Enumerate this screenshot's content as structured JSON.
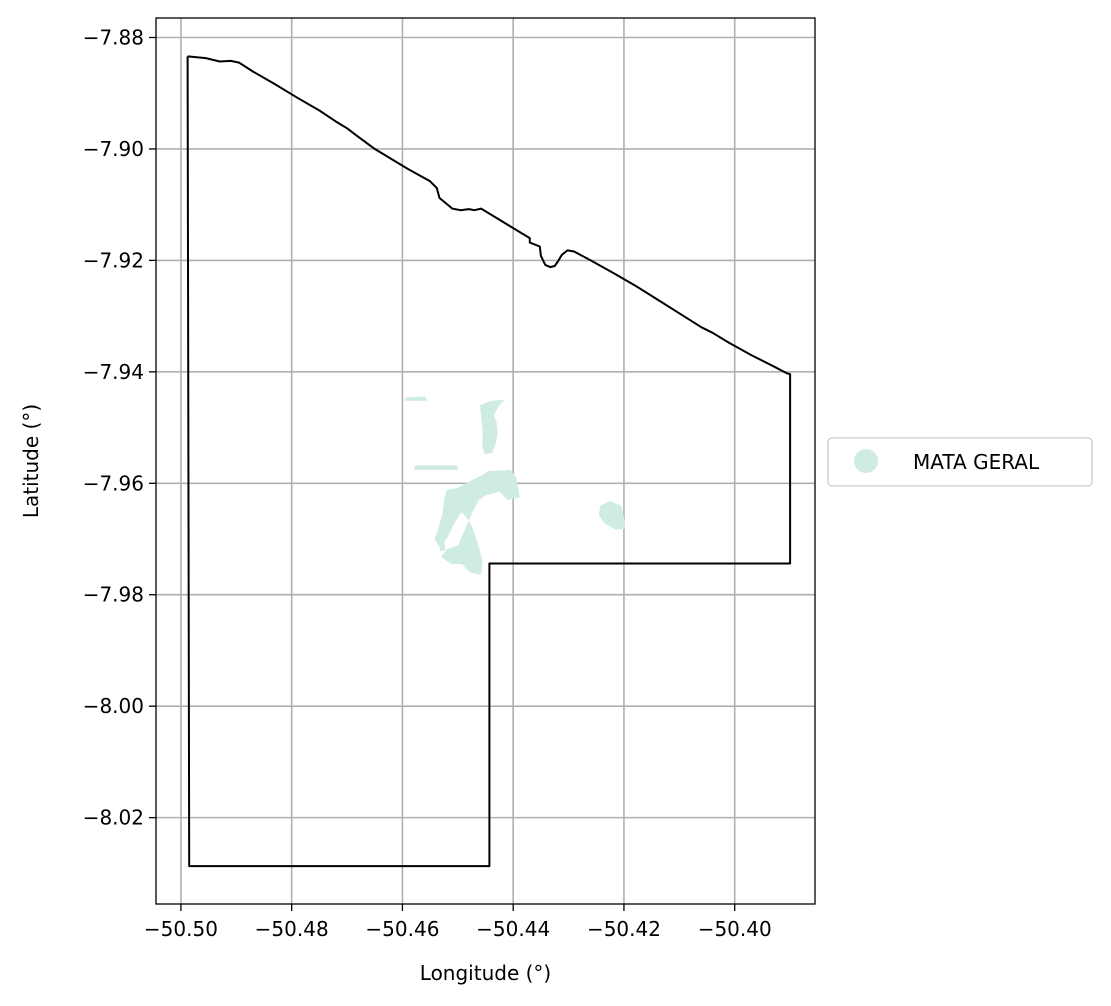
{
  "chart_data": {
    "type": "map",
    "xlabel": "Longitude (°)",
    "ylabel": "Latitude (°)",
    "xlim": [
      -50.5045,
      -50.3855
    ],
    "ylim": [
      -8.0355,
      -7.8765
    ],
    "x_ticks": [
      -50.5,
      -50.48,
      -50.46,
      -50.44,
      -50.42,
      -50.4
    ],
    "x_tick_labels": [
      "−50.50",
      "−50.48",
      "−50.46",
      "−50.44",
      "−50.42",
      "−50.40"
    ],
    "y_ticks": [
      -7.88,
      -7.9,
      -7.92,
      -7.94,
      -7.96,
      -7.98,
      -8.0,
      -8.02
    ],
    "y_tick_labels": [
      "−7.88",
      "−7.90",
      "−7.92",
      "−7.94",
      "−7.96",
      "−7.98",
      "−8.00",
      "−8.02"
    ],
    "grid": true,
    "legend": {
      "placement": "right",
      "entries": [
        {
          "label": "MATA GERAL",
          "color": "#cfece0"
        }
      ]
    },
    "boundary_color": "#000000",
    "boundary": [
      [
        -50.4988,
        -7.8834
      ],
      [
        -50.4955,
        -7.8837
      ],
      [
        -50.493,
        -7.8843
      ],
      [
        -50.491,
        -7.8842
      ],
      [
        -50.4895,
        -7.8845
      ],
      [
        -50.487,
        -7.8861
      ],
      [
        -50.483,
        -7.8884
      ],
      [
        -50.479,
        -7.8908
      ],
      [
        -50.475,
        -7.8931
      ],
      [
        -50.472,
        -7.8951
      ],
      [
        -50.47,
        -7.8963
      ],
      [
        -50.468,
        -7.8978
      ],
      [
        -50.465,
        -7.9
      ],
      [
        -50.462,
        -7.9018
      ],
      [
        -50.459,
        -7.9036
      ],
      [
        -50.455,
        -7.9058
      ],
      [
        -50.4538,
        -7.907
      ],
      [
        -50.4533,
        -7.9088
      ],
      [
        -50.4522,
        -7.9097
      ],
      [
        -50.451,
        -7.9107
      ],
      [
        -50.4495,
        -7.911
      ],
      [
        -50.448,
        -7.9108
      ],
      [
        -50.447,
        -7.911
      ],
      [
        -50.4458,
        -7.9107
      ],
      [
        -50.443,
        -7.9124
      ],
      [
        -50.44,
        -7.9142
      ],
      [
        -50.437,
        -7.916
      ],
      [
        -50.437,
        -7.9168
      ],
      [
        -50.4352,
        -7.9175
      ],
      [
        -50.435,
        -7.9192
      ],
      [
        -50.4342,
        -7.9208
      ],
      [
        -50.4333,
        -7.9212
      ],
      [
        -50.4325,
        -7.921
      ],
      [
        -50.4318,
        -7.92
      ],
      [
        -50.4312,
        -7.919
      ],
      [
        -50.4302,
        -7.9182
      ],
      [
        -50.429,
        -7.9184
      ],
      [
        -50.426,
        -7.92
      ],
      [
        -50.422,
        -7.9222
      ],
      [
        -50.418,
        -7.9245
      ],
      [
        -50.414,
        -7.927
      ],
      [
        -50.41,
        -7.9295
      ],
      [
        -50.406,
        -7.932
      ],
      [
        -50.404,
        -7.933
      ],
      [
        -50.401,
        -7.9348
      ],
      [
        -50.397,
        -7.937
      ],
      [
        -50.393,
        -7.939
      ],
      [
        -50.3905,
        -7.9403
      ],
      [
        -50.39,
        -7.9404
      ],
      [
        -50.39,
        -7.9744
      ],
      [
        -50.4443,
        -7.9744
      ],
      [
        -50.4443,
        -8.0287
      ],
      [
        -50.4985,
        -8.0287
      ],
      [
        -50.4988,
        -7.8834
      ]
    ],
    "mata_geral_patches": [
      [
        [
          -50.4595,
          -7.9446
        ],
        [
          -50.456,
          -7.9444
        ],
        [
          -50.4555,
          -7.9452
        ],
        [
          -50.4595,
          -7.9452
        ]
      ],
      [
        [
          -50.4578,
          -7.9568
        ],
        [
          -50.45,
          -7.9568
        ],
        [
          -50.45,
          -7.9576
        ],
        [
          -50.4578,
          -7.9576
        ]
      ],
      [
        [
          -50.444,
          -7.9452
        ],
        [
          -50.4415,
          -7.945
        ],
        [
          -50.4425,
          -7.946
        ],
        [
          -50.4435,
          -7.9478
        ],
        [
          -50.443,
          -7.949
        ],
        [
          -50.4428,
          -7.951
        ],
        [
          -50.4432,
          -7.953
        ],
        [
          -50.4438,
          -7.9545
        ],
        [
          -50.4452,
          -7.9548
        ],
        [
          -50.4456,
          -7.953
        ],
        [
          -50.4455,
          -7.9505
        ],
        [
          -50.4458,
          -7.948
        ],
        [
          -50.446,
          -7.946
        ]
      ],
      [
        [
          -50.4445,
          -7.9578
        ],
        [
          -50.4405,
          -7.9576
        ],
        [
          -50.4395,
          -7.9588
        ],
        [
          -50.4392,
          -7.9605
        ],
        [
          -50.4388,
          -7.9625
        ],
        [
          -50.441,
          -7.963
        ],
        [
          -50.4425,
          -7.9615
        ],
        [
          -50.445,
          -7.9622
        ],
        [
          -50.4462,
          -7.963
        ],
        [
          -50.4475,
          -7.9655
        ],
        [
          -50.4488,
          -7.9685
        ],
        [
          -50.45,
          -7.9712
        ],
        [
          -50.452,
          -7.9718
        ],
        [
          -50.453,
          -7.9732
        ],
        [
          -50.4512,
          -7.9745
        ],
        [
          -50.4492,
          -7.9745
        ],
        [
          -50.4478,
          -7.976
        ],
        [
          -50.4458,
          -7.9764
        ],
        [
          -50.4455,
          -7.974
        ],
        [
          -50.4462,
          -7.9715
        ],
        [
          -50.447,
          -7.969
        ],
        [
          -50.4478,
          -7.967
        ],
        [
          -50.449,
          -7.9655
        ],
        [
          -50.45,
          -7.9642
        ],
        [
          -50.4508,
          -7.963
        ],
        [
          -50.4512,
          -7.9615
        ],
        [
          -50.4485,
          -7.96
        ],
        [
          -50.447,
          -7.9592
        ],
        [
          -50.4455,
          -7.9585
        ]
      ],
      [
        [
          -50.452,
          -7.9612
        ],
        [
          -50.45,
          -7.9608
        ],
        [
          -50.449,
          -7.9625
        ],
        [
          -50.4492,
          -7.965
        ],
        [
          -50.4505,
          -7.967
        ],
        [
          -50.452,
          -7.97
        ],
        [
          -50.4535,
          -7.9712
        ],
        [
          -50.4542,
          -7.97
        ],
        [
          -50.4535,
          -7.968
        ],
        [
          -50.4528,
          -7.9655
        ],
        [
          -50.4525,
          -7.963
        ]
      ],
      [
        [
          -50.4535,
          -7.97
        ],
        [
          -50.4525,
          -7.97
        ],
        [
          -50.4522,
          -7.972
        ],
        [
          -50.4532,
          -7.9722
        ]
      ],
      [
        [
          -50.4243,
          -7.964
        ],
        [
          -50.4225,
          -7.9632
        ],
        [
          -50.4205,
          -7.964
        ],
        [
          -50.42,
          -7.966
        ],
        [
          -50.4197,
          -7.9682
        ],
        [
          -50.4215,
          -7.9683
        ],
        [
          -50.4235,
          -7.9672
        ],
        [
          -50.4245,
          -7.9658
        ]
      ]
    ]
  }
}
